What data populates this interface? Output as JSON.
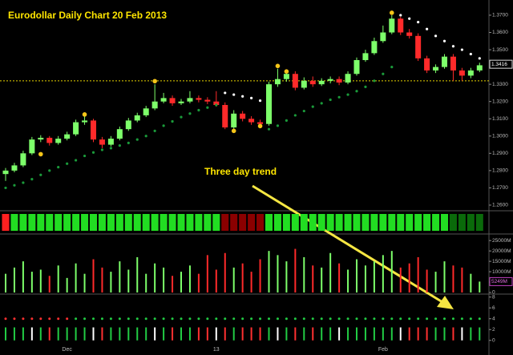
{
  "chart_data": {
    "type": "candlestick",
    "title": "Eurodollar Daily Chart 20 Feb 2013",
    "annotation": "Three day trend",
    "categories": [
      null,
      null,
      null,
      null,
      null,
      null,
      null,
      "Dec",
      null,
      null,
      null,
      null,
      null,
      null,
      null,
      null,
      null,
      null,
      null,
      null,
      null,
      null,
      null,
      null,
      "13",
      null,
      null,
      null,
      null,
      null,
      null,
      null,
      null,
      null,
      null,
      null,
      null,
      null,
      null,
      null,
      null,
      null,
      null,
      "Feb",
      null,
      null,
      null,
      null,
      null,
      null,
      null,
      null,
      null,
      null,
      null
    ],
    "open": [
      1.278,
      1.28,
      1.283,
      1.29,
      1.298,
      1.299,
      1.296,
      1.2985,
      1.301,
      1.308,
      1.309,
      1.298,
      1.295,
      1.2985,
      1.304,
      1.309,
      1.312,
      1.316,
      1.32,
      1.322,
      1.319,
      1.32,
      1.322,
      1.321,
      1.32,
      1.318,
      1.305,
      1.313,
      1.31,
      1.308,
      1.307,
      1.33,
      1.333,
      1.336,
      1.328,
      1.332,
      1.33,
      1.332,
      1.333,
      1.331,
      1.336,
      1.344,
      1.348,
      1.355,
      1.36,
      1.368,
      1.36,
      1.358,
      1.345,
      1.338,
      1.34,
      1.346,
      1.338,
      1.335,
      1.338
    ],
    "high": [
      1.2815,
      1.2845,
      1.2915,
      1.2995,
      1.3005,
      1.3,
      1.3,
      1.3025,
      1.3095,
      1.312,
      1.31,
      1.2995,
      1.3,
      1.3055,
      1.3105,
      1.3135,
      1.3175,
      1.33,
      1.325,
      1.3235,
      1.3215,
      1.326,
      1.3235,
      1.3225,
      1.326,
      1.3195,
      1.315,
      1.3145,
      1.3115,
      1.3095,
      1.3315,
      1.339,
      1.337,
      1.3375,
      1.334,
      1.3345,
      1.3335,
      1.3345,
      1.3345,
      1.3375,
      1.3455,
      1.35,
      1.357,
      1.364,
      1.37,
      1.369,
      1.362,
      1.3595,
      1.3465,
      1.3415,
      1.3475,
      1.3475,
      1.3395,
      1.3395,
      1.3425
    ],
    "low": [
      1.274,
      1.279,
      1.282,
      1.289,
      1.2965,
      1.2945,
      1.295,
      1.2975,
      1.3,
      1.3065,
      1.2965,
      1.293,
      1.294,
      1.2975,
      1.303,
      1.308,
      1.311,
      1.315,
      1.319,
      1.3175,
      1.318,
      1.319,
      1.3195,
      1.3185,
      1.317,
      1.304,
      1.303,
      1.3085,
      1.3065,
      1.3055,
      1.306,
      1.3285,
      1.3315,
      1.3265,
      1.327,
      1.3285,
      1.329,
      1.3305,
      1.3295,
      1.33,
      1.335,
      1.343,
      1.347,
      1.354,
      1.359,
      1.3585,
      1.3565,
      1.3435,
      1.3365,
      1.3365,
      1.339,
      1.332,
      1.332,
      1.3335,
      1.337
    ],
    "close": [
      1.28,
      1.283,
      1.29,
      1.298,
      1.299,
      1.296,
      1.2985,
      1.301,
      1.308,
      1.309,
      1.298,
      1.295,
      1.2985,
      1.304,
      1.309,
      1.312,
      1.316,
      1.32,
      1.322,
      1.319,
      1.32,
      1.322,
      1.321,
      1.32,
      1.318,
      1.305,
      1.313,
      1.31,
      1.308,
      1.307,
      1.33,
      1.333,
      1.336,
      1.328,
      1.332,
      1.33,
      1.332,
      1.333,
      1.331,
      1.336,
      1.344,
      1.348,
      1.355,
      1.36,
      1.368,
      1.36,
      1.358,
      1.345,
      1.338,
      1.34,
      1.346,
      1.338,
      1.335,
      1.338,
      1.341
    ],
    "sar": [
      1.27,
      1.2715,
      1.273,
      1.275,
      1.2775,
      1.28,
      1.282,
      1.284,
      1.286,
      1.2885,
      1.2905,
      1.292,
      1.293,
      1.2945,
      1.296,
      1.298,
      1.3,
      1.303,
      1.306,
      1.3085,
      1.311,
      1.313,
      1.315,
      1.3165,
      1.318,
      1.325,
      1.324,
      1.323,
      1.322,
      1.3205,
      1.304,
      1.306,
      1.309,
      1.312,
      1.3145,
      1.317,
      1.319,
      1.321,
      1.3225,
      1.324,
      1.326,
      1.3285,
      1.332,
      1.336,
      1.34,
      1.37,
      1.368,
      1.366,
      1.362,
      1.358,
      1.355,
      1.352,
      1.35,
      1.3475,
      1.345
    ],
    "markers": {
      "x": [
        4,
        9,
        17,
        26,
        29,
        31,
        32,
        44
      ],
      "values": [
        1.2895,
        1.3125,
        1.3318,
        1.303,
        1.3058,
        1.3406,
        1.3374,
        1.3714
      ],
      "color": "#f5c518"
    },
    "level": 1.332,
    "last_price": {
      "value": 1.3416,
      "label": "1.3416"
    },
    "up_color": "#7dff6a",
    "down_color": "#ff2a2a",
    "ylim": [
      1.2572,
      1.3788
    ],
    "yticks": [
      {
        "value": 1.37,
        "label": "1.3700"
      },
      {
        "value": 1.36,
        "label": "1.3600"
      },
      {
        "value": 1.35,
        "label": "1.3500"
      },
      {
        "value": 1.33,
        "label": "1.3300"
      },
      {
        "value": 1.32,
        "label": "1.3200"
      },
      {
        "value": 1.31,
        "label": "1.3100"
      },
      {
        "value": 1.3,
        "label": "1.3000"
      },
      {
        "value": 1.29,
        "label": "1.2900"
      },
      {
        "value": 1.28,
        "label": "1.2800"
      },
      {
        "value": 1.27,
        "label": "1.2700"
      },
      {
        "value": 1.26,
        "label": "1.2600"
      }
    ],
    "trend_colors": [
      "#ff2020",
      "#22dd22",
      "#22dd22",
      "#22dd22",
      "#22dd22",
      "#22dd22",
      "#22dd22",
      "#22dd22",
      "#22dd22",
      "#22dd22",
      "#22dd22",
      "#22dd22",
      "#22dd22",
      "#22dd22",
      "#22dd22",
      "#22dd22",
      "#22dd22",
      "#22dd22",
      "#22dd22",
      "#22dd22",
      "#22dd22",
      "#22dd22",
      "#22dd22",
      "#22dd22",
      "#22dd22",
      "#8b0000",
      "#8b0000",
      "#8b0000",
      "#8b0000",
      "#8b0000",
      "#22dd22",
      "#22dd22",
      "#22dd22",
      "#22dd22",
      "#22dd22",
      "#22dd22",
      "#22dd22",
      "#22dd22",
      "#22dd22",
      "#22dd22",
      "#22dd22",
      "#22dd22",
      "#22dd22",
      "#22dd22",
      "#22dd22",
      "#22dd22",
      "#22dd22",
      "#22dd22",
      "#22dd22",
      "#22dd22",
      "#22dd22",
      "#0a6a0a",
      "#0a6a0a",
      "#0a6a0a",
      "#0a6a0a"
    ],
    "volume": {
      "type": "bar",
      "values": [
        9000,
        12000,
        15000,
        10000,
        11000,
        8000,
        13000,
        7000,
        14000,
        9000,
        16000,
        12000,
        10000,
        15000,
        11000,
        17000,
        9000,
        14000,
        12000,
        8000,
        10000,
        13000,
        9000,
        18000,
        11000,
        19000,
        12000,
        14000,
        10000,
        16000,
        20000,
        18000,
        15000,
        21000,
        17000,
        13000,
        12000,
        19000,
        14000,
        11000,
        16000,
        13000,
        15000,
        18000,
        20000,
        12000,
        14000,
        17000,
        11000,
        10000,
        15000,
        13000,
        12000,
        9000,
        5249
      ],
      "last_label": "5249M",
      "ylim": [
        0,
        27000
      ],
      "yticks": [
        {
          "value": 25000,
          "label": "25000M"
        },
        {
          "value": 20000,
          "label": "20000M"
        },
        {
          "value": 15000,
          "label": "15000M"
        },
        {
          "value": 10000,
          "label": "10000M"
        },
        {
          "value": 5000,
          "label": "5000M"
        },
        0
      ]
    },
    "lower": {
      "type": "bar",
      "bars": [
        2.4,
        2.4,
        2.4,
        2.4,
        2.4,
        2.4,
        2.4,
        2.4,
        2.4,
        2.4,
        2.4,
        2.4,
        2.4,
        2.4,
        2.4,
        2.4,
        2.4,
        2.4,
        2.4,
        2.4,
        2.4,
        2.4,
        2.4,
        2.4,
        2.4,
        2.4,
        2.4,
        2.4,
        2.4,
        2.4,
        2.4,
        2.4,
        2.4,
        2.4,
        2.4,
        2.4,
        2.4,
        2.4,
        2.4,
        2.4,
        2.4,
        2.4,
        2.4,
        2.4,
        2.4,
        2.4,
        2.4,
        2.4,
        2.4,
        2.4,
        2.4,
        2.4,
        2.4,
        2.4,
        2.4
      ],
      "dots": [
        4,
        4,
        4,
        4,
        4,
        4,
        4,
        4,
        4,
        4,
        4,
        4,
        4,
        4,
        4,
        4,
        4,
        4,
        4,
        4,
        4,
        4,
        4,
        4,
        4,
        4,
        4,
        4,
        4,
        4,
        4,
        4,
        4,
        4,
        4,
        4,
        4,
        4,
        4,
        4,
        4,
        4,
        4,
        4,
        4,
        4,
        4,
        4,
        4,
        4,
        4,
        4,
        4,
        4,
        4
      ],
      "ylim": [
        -2.7,
        8.4
      ],
      "yticks": [
        8,
        6,
        4,
        2,
        0
      ]
    }
  }
}
